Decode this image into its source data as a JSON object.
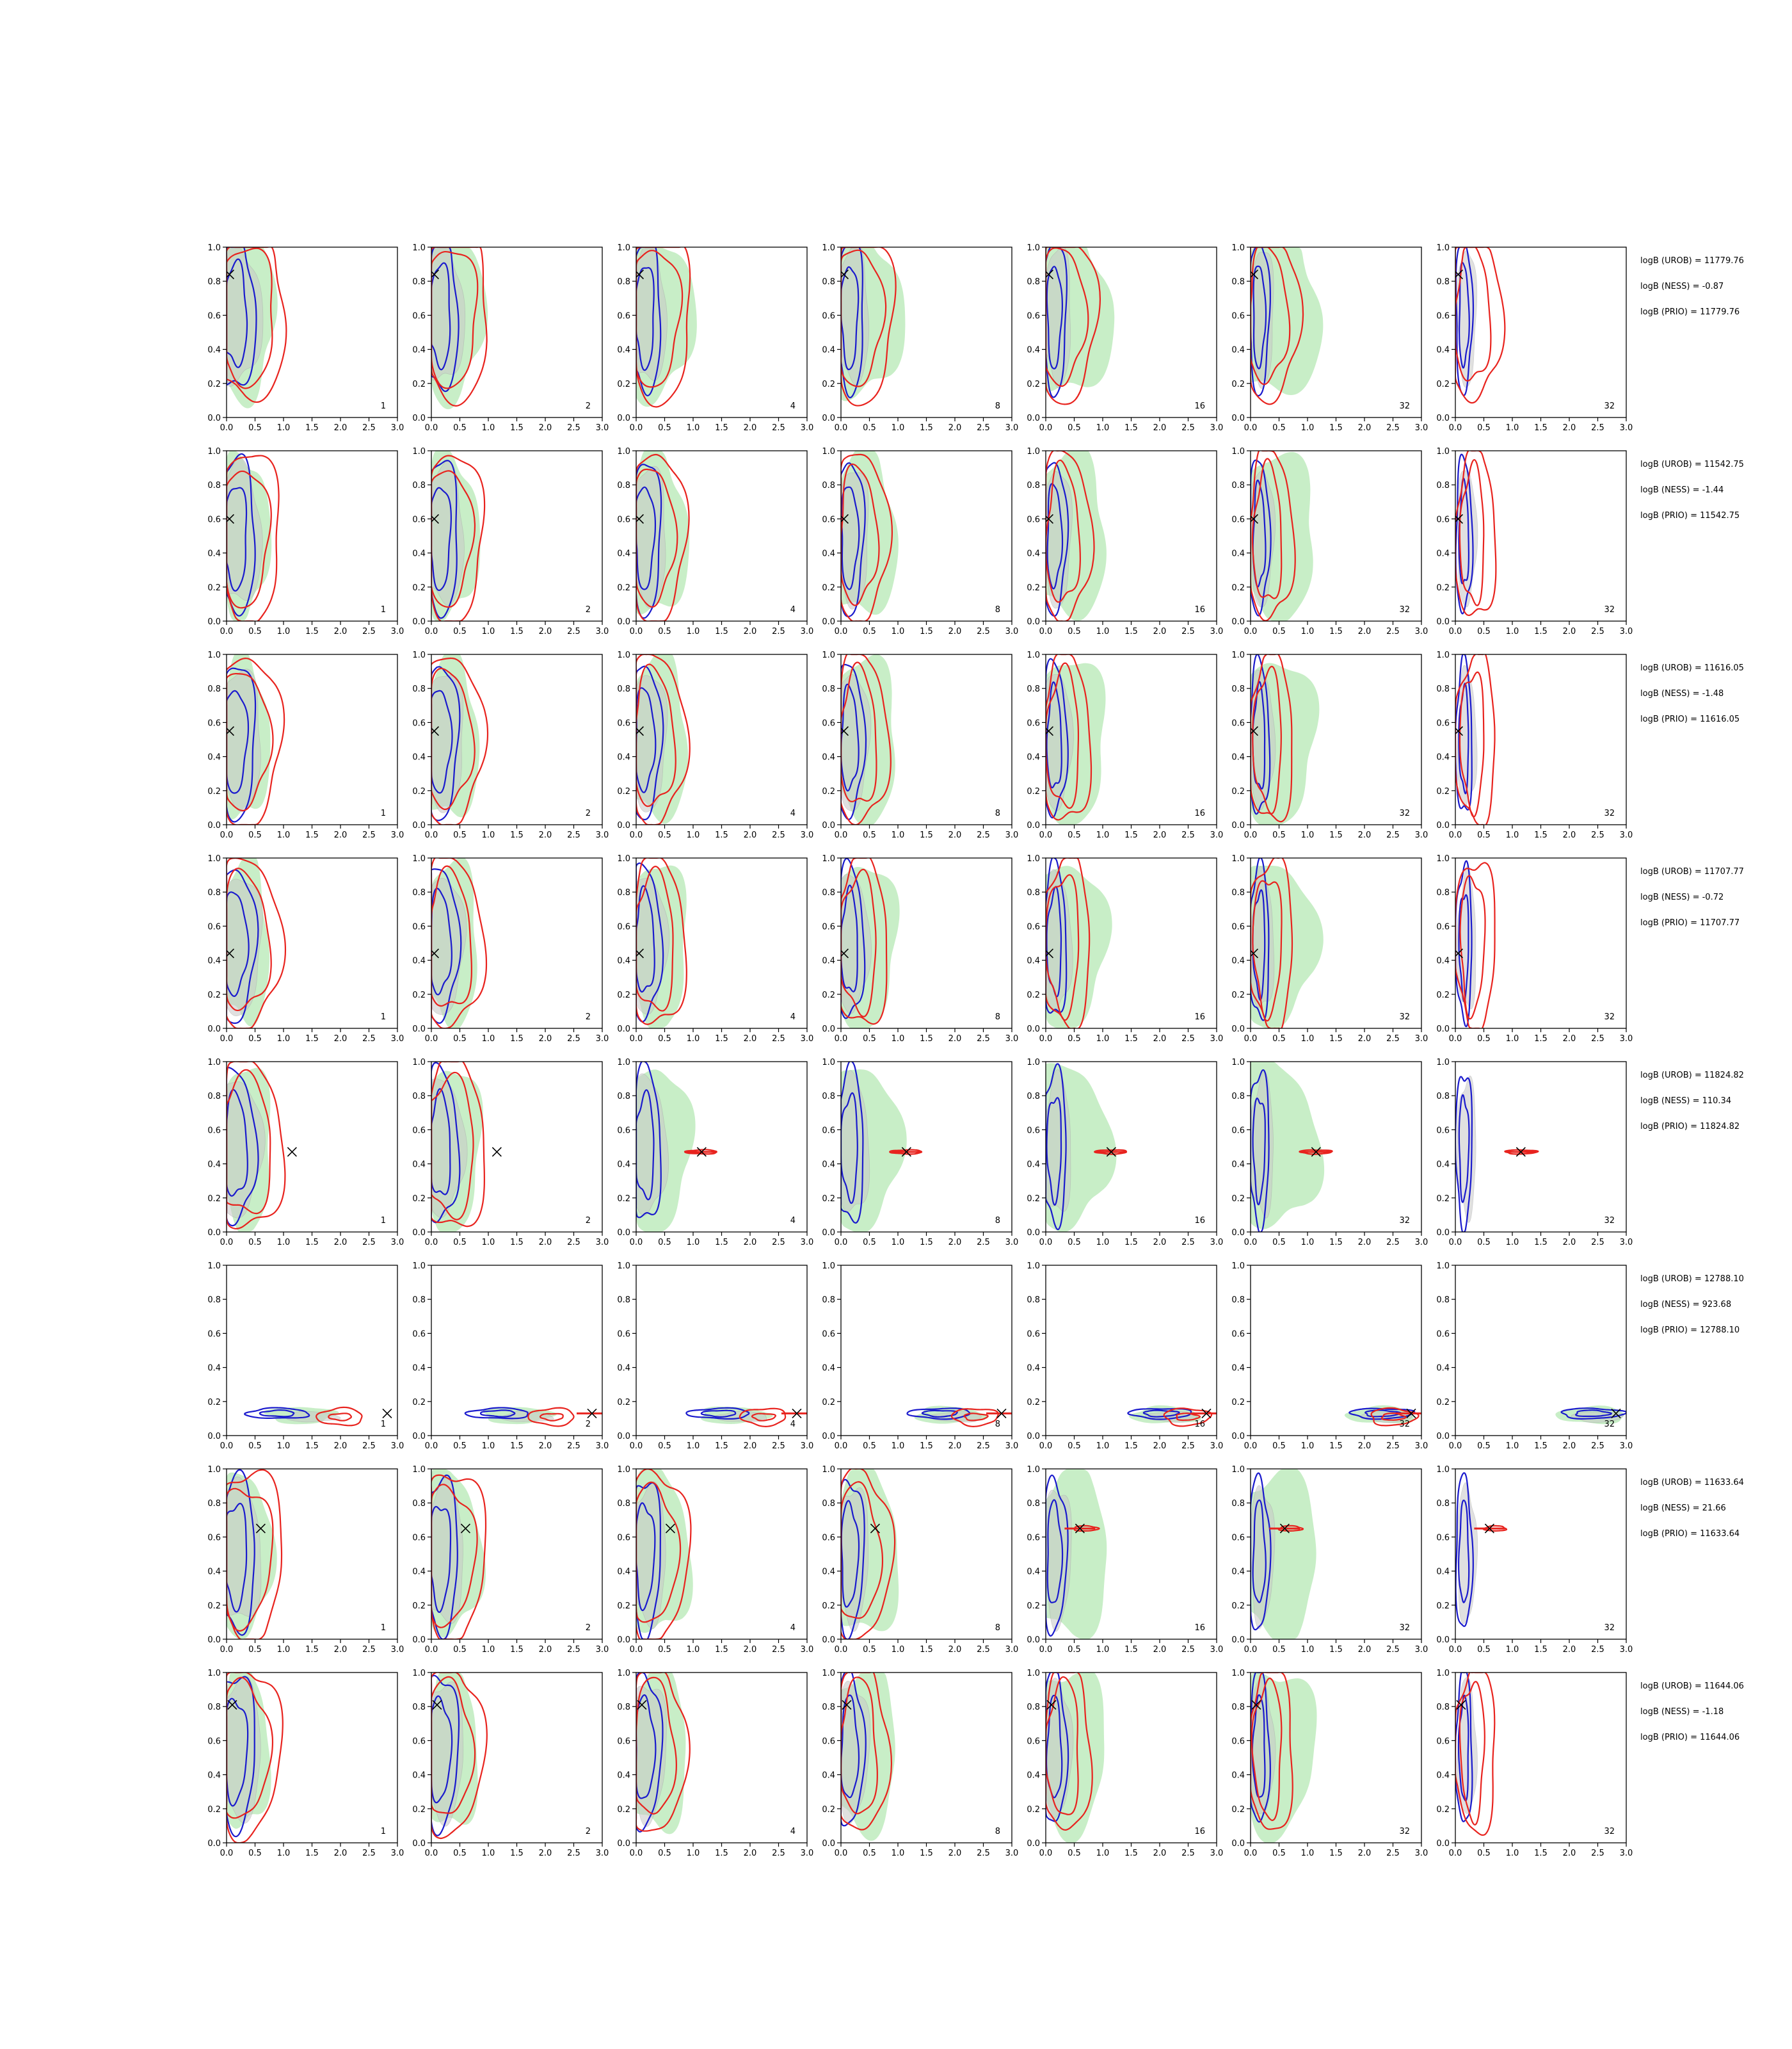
{
  "chart_data": {
    "type": "contour-grid",
    "rows": 8,
    "columns": 7,
    "xlim": [
      0.0,
      3.0
    ],
    "ylim": [
      0.0,
      1.0
    ],
    "xticks": [
      "0.0",
      "0.5",
      "1.0",
      "1.5",
      "2.0",
      "2.5",
      "3.0"
    ],
    "yticks": [
      "0.0",
      "0.2",
      "0.4",
      "0.6",
      "0.8",
      "1.0"
    ],
    "panel_labels": [
      "1",
      "2",
      "4",
      "8",
      "16",
      "32",
      "32"
    ],
    "colors": {
      "red_contour": "#e8231e",
      "blue_contour": "#1a1acd",
      "green_fill": "#b6e8b4",
      "gray_fill": "#c8c8c8",
      "truth_marker": "#000000",
      "truth_marker_highlight": "#e8231e"
    },
    "truth_points": [
      {
        "x": 0.05,
        "y": 0.84
      },
      {
        "x": 0.05,
        "y": 0.6
      },
      {
        "x": 0.05,
        "y": 0.55
      },
      {
        "x": 0.05,
        "y": 0.44
      },
      {
        "x": 1.15,
        "y": 0.47
      },
      {
        "x": 2.82,
        "y": 0.13
      },
      {
        "x": 0.6,
        "y": 0.65
      },
      {
        "x": 0.1,
        "y": 0.81
      }
    ],
    "row_annotations": [
      [
        "logB (UROB) = 11779.76",
        "logB (NESS) = -0.87",
        "logB (PRIO) = 11779.76"
      ],
      [
        "logB (UROB) = 11542.75",
        "logB (NESS) = -1.44",
        "logB (PRIO) = 11542.75"
      ],
      [
        "logB (UROB) = 11616.05",
        "logB (NESS) = -1.48",
        "logB (PRIO) = 11616.05"
      ],
      [
        "logB (UROB) = 11707.77",
        "logB (NESS) = -0.72",
        "logB (PRIO) = 11707.77"
      ],
      [
        "logB (UROB) = 11824.82",
        "logB (NESS) = 110.34",
        "logB (PRIO) = 11824.82"
      ],
      [
        "logB (UROB) = 12788.10",
        "logB (NESS) = 923.68",
        "logB (PRIO) = 12788.10"
      ],
      [
        "logB (UROB) = 11633.64",
        "logB (NESS) = 21.66",
        "logB (PRIO) = 11633.64"
      ],
      [
        "logB (UROB) = 11644.06",
        "logB (NESS) = -1.18",
        "logB (PRIO) = 11644.06"
      ]
    ]
  }
}
